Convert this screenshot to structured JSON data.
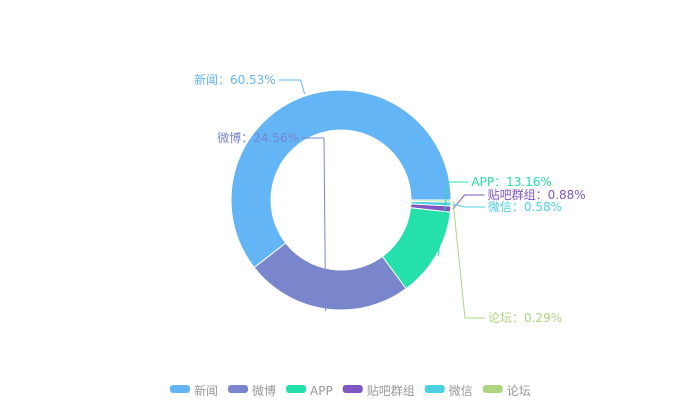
{
  "chart_data": {
    "type": "pie",
    "donut": true,
    "legend_position": "bottom",
    "slices": [
      {
        "name": "新闻",
        "value": 60.53,
        "label": "新闻：60.53%",
        "color": "#64b5f6"
      },
      {
        "name": "微博",
        "value": 24.56,
        "label": "微博：24.56%",
        "color": "#7986cb"
      },
      {
        "name": "APP",
        "value": 13.16,
        "label": "APP：13.16%",
        "color": "#26e0ab"
      },
      {
        "name": "贴吧群组",
        "value": 0.88,
        "label": "贴吧群组：0.88%",
        "color": "#7e57c2"
      },
      {
        "name": "微信",
        "value": 0.58,
        "label": "微信：0.58%",
        "color": "#4dd0e1"
      },
      {
        "name": "论坛",
        "value": 0.29,
        "label": "论坛：0.29%",
        "color": "#aed581"
      }
    ]
  }
}
